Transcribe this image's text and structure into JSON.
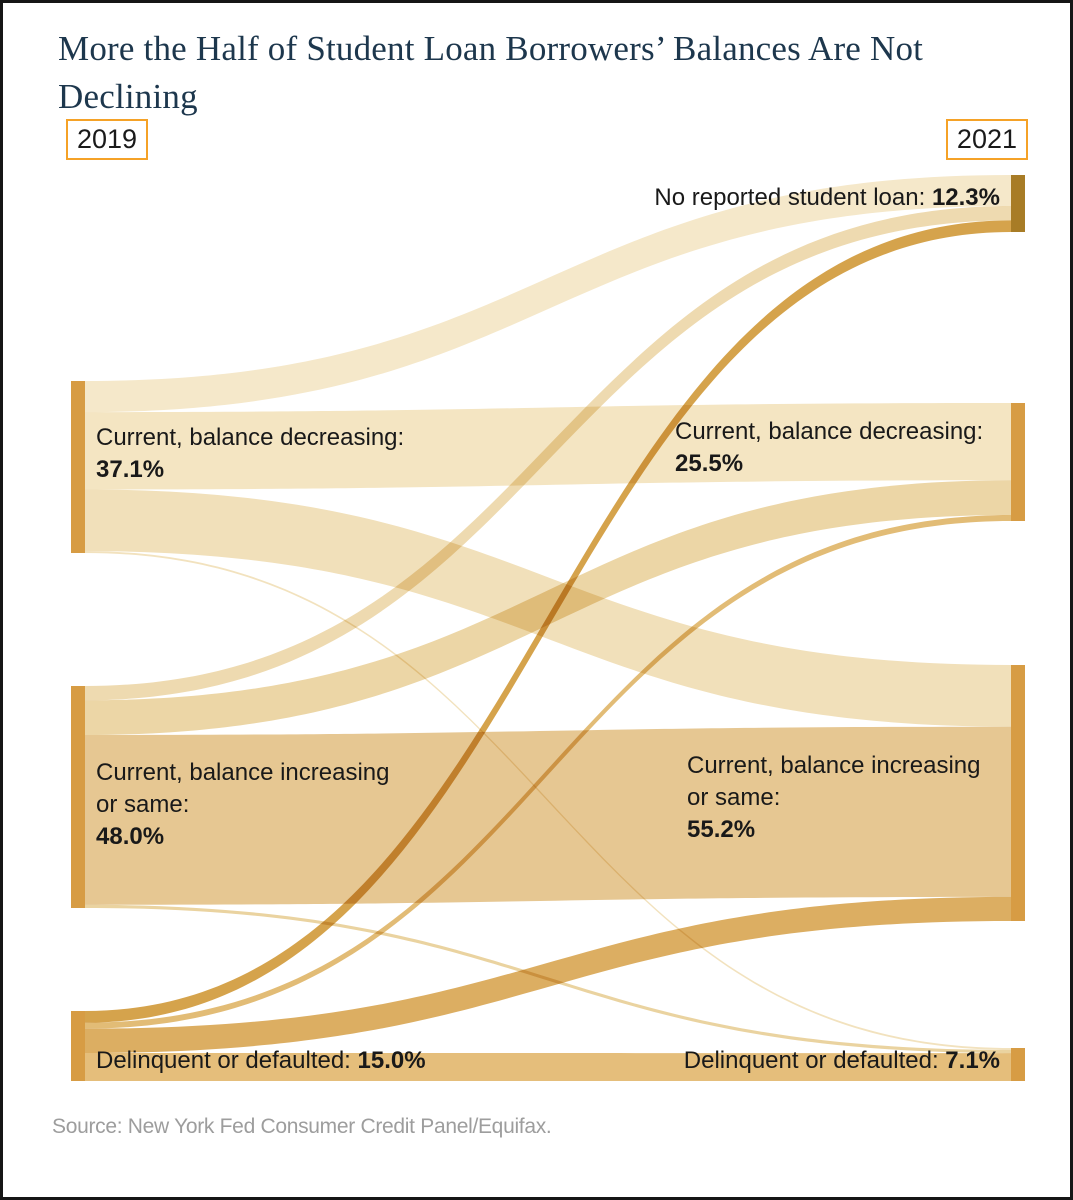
{
  "title": "More the Half of Student Loan Borrowers’ Balances Are Not Declining",
  "source_note": "Source: New York Fed Consumer Credit Panel/Equifax.",
  "colors": {
    "frame_border": "#161616",
    "title_text": "#1d374d",
    "year_badge_border": "#f5a227",
    "label_text": "#191919",
    "source_text": "#9d9d9d",
    "node_default": "#d79c44",
    "node_no_loan": "#a87c26"
  },
  "chart_data": {
    "type": "sankey",
    "title": "More the Half of Student Loan Borrowers’ Balances Are Not Declining",
    "unit": "%",
    "columns": [
      {
        "year": "2019"
      },
      {
        "year": "2021"
      }
    ],
    "nodes": [
      {
        "id": "dec19",
        "col": 0,
        "label": "Current, balance decreasing:",
        "pct": "37.1%",
        "value": 37.1,
        "color": "#d79c44"
      },
      {
        "id": "inc19",
        "col": 0,
        "label": "Current, balance increasing\nor same:",
        "pct": "48.0%",
        "value": 48.0,
        "color": "#d79c44"
      },
      {
        "id": "del19",
        "col": 0,
        "label": "Delinquent or defaulted:",
        "pct": "15.0%",
        "value": 15.0,
        "color": "#d79c44"
      },
      {
        "id": "no21",
        "col": 1,
        "label": "No reported student loan:",
        "pct": "12.3%",
        "value": 12.3,
        "color": "#a87c26"
      },
      {
        "id": "dec21",
        "col": 1,
        "label": "Current, balance decreasing:",
        "pct": "25.5%",
        "value": 25.5,
        "color": "#d79c44"
      },
      {
        "id": "inc21",
        "col": 1,
        "label": "Current, balance increasing\nor same:",
        "pct": "55.2%",
        "value": 55.2,
        "color": "#d79c44"
      },
      {
        "id": "del21",
        "col": 1,
        "label": "Delinquent or defaulted:",
        "pct": "7.1%",
        "value": 7.1,
        "color": "#d79c44"
      }
    ],
    "links": [
      {
        "source": "dec19",
        "target": "no21",
        "value": 6.7,
        "color": "#f5e8ca"
      },
      {
        "source": "dec19",
        "target": "dec21",
        "value": 16.7,
        "color": "#f4e5c2"
      },
      {
        "source": "dec19",
        "target": "inc21",
        "value": 13.3,
        "color": "#f1e0ba"
      },
      {
        "source": "dec19",
        "target": "del21",
        "value": 0.4,
        "color": "#f2e2be"
      },
      {
        "source": "inc19",
        "target": "no21",
        "value": 3.1,
        "color": "#eedab0"
      },
      {
        "source": "inc19",
        "target": "dec21",
        "value": 7.5,
        "color": "#ecd6a6"
      },
      {
        "source": "inc19",
        "target": "inc21",
        "value": 36.7,
        "color": "#e6c792"
      },
      {
        "source": "inc19",
        "target": "del21",
        "value": 0.7,
        "color": "#ead3a0"
      },
      {
        "source": "del19",
        "target": "no21",
        "value": 2.5,
        "color": "#d5a34c"
      },
      {
        "source": "del19",
        "target": "dec21",
        "value": 1.3,
        "color": "#e2bc76"
      },
      {
        "source": "del19",
        "target": "inc21",
        "value": 5.2,
        "color": "#dcae62"
      },
      {
        "source": "del19",
        "target": "del21",
        "value": 6.0,
        "color": "#e5be7b"
      }
    ],
    "legend": "none",
    "grid": false
  }
}
